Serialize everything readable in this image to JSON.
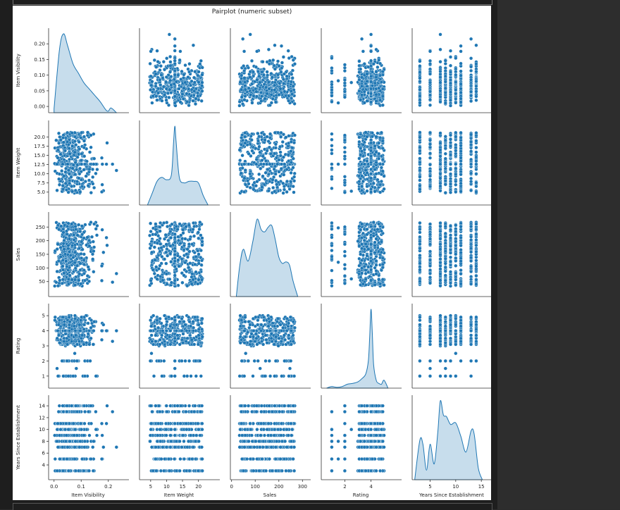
{
  "figure": {
    "title": "Pairplot (numeric subset)"
  },
  "colors": {
    "marker": "#1f77b4",
    "marker_edge": "#ffffff",
    "kde_fill": "#1f77b4",
    "background": "#ffffff"
  },
  "chart_data": {
    "type": "scatter",
    "subtype": "pairplot",
    "title": "Pairplot (numeric subset)",
    "diagonal": "kde",
    "variables": [
      {
        "name": "Item Visibility",
        "range": [
          0.0,
          0.23
        ],
        "lim": [
          -0.02,
          0.25
        ],
        "ticks": [
          0.0,
          0.1,
          0.2
        ],
        "tick_labels": [
          "0.0",
          "0.1",
          "0.2"
        ],
        "yticks": [
          0.0,
          0.05,
          0.1,
          0.15,
          0.2
        ],
        "ytick_labels": [
          "0.00",
          "0.05",
          "0.10",
          "0.15",
          "0.20"
        ],
        "kde_peak": 0.035
      },
      {
        "name": "Item Weight",
        "range": [
          4.6,
          21.3
        ],
        "lim": [
          1.5,
          24.5
        ],
        "ticks": [
          5,
          10,
          15,
          20
        ],
        "tick_labels": [
          "5",
          "10",
          "15",
          "20"
        ],
        "yticks": [
          5.0,
          7.5,
          10.0,
          12.5,
          15.0,
          17.5,
          20.0
        ],
        "ytick_labels": [
          "5.0",
          "7.5",
          "10.0",
          "12.5",
          "15.0",
          "17.5",
          "20.0"
        ],
        "kde_peak": 12.6
      },
      {
        "name": "Sales",
        "range": [
          33,
          268
        ],
        "lim": [
          -5,
          305
        ],
        "ticks": [
          0,
          100,
          200,
          300
        ],
        "tick_labels": [
          "0",
          "100",
          "200",
          "300"
        ],
        "yticks": [
          50,
          100,
          150,
          200,
          250
        ],
        "ytick_labels": [
          "50",
          "100",
          "150",
          "200",
          "250"
        ],
        "kde_peak": 108
      },
      {
        "name": "Rating",
        "range": [
          1,
          5
        ],
        "lim": [
          0.2,
          5.8
        ],
        "ticks": [
          2,
          4
        ],
        "tick_labels": [
          "2",
          "4"
        ],
        "yticks": [
          1,
          2,
          3,
          4,
          5
        ],
        "ytick_labels": [
          "1",
          "2",
          "3",
          "4",
          "5"
        ],
        "kde_peak": 4.0
      },
      {
        "name": "Years Since Establishment",
        "range": [
          3,
          14
        ],
        "lim": [
          1.5,
          15.8
        ],
        "ticks": [
          5,
          10,
          15
        ],
        "tick_labels": [
          "5",
          "10",
          "15"
        ],
        "yticks": [
          4,
          6,
          8,
          10,
          12,
          14
        ],
        "ytick_labels": [
          "4",
          "6",
          "8",
          "10",
          "12",
          "14"
        ],
        "kde_peak": 7
      }
    ],
    "discrete_values": {
      "Rating": [
        1,
        1.5,
        2,
        2.5,
        3,
        3.5,
        4,
        4.5,
        5
      ],
      "Years Since Establishment": [
        3,
        5,
        7,
        8,
        9,
        10,
        11,
        13,
        14
      ]
    },
    "kde": {
      "Item Visibility": {
        "x": [
          0.0,
          0.02,
          0.035,
          0.05,
          0.07,
          0.09,
          0.11,
          0.13,
          0.15,
          0.17,
          0.19,
          0.2,
          0.21,
          0.23
        ],
        "density": [
          0.05,
          0.8,
          1.0,
          0.85,
          0.62,
          0.5,
          0.38,
          0.3,
          0.22,
          0.14,
          0.04,
          0.02,
          0.06,
          0.0
        ]
      },
      "Item Weight": {
        "x": [
          4,
          5.5,
          7,
          8.5,
          10,
          11.5,
          12.2,
          12.6,
          13.0,
          14,
          15.5,
          17,
          18.5,
          20,
          21.5,
          23
        ],
        "density": [
          0.0,
          0.15,
          0.3,
          0.35,
          0.32,
          0.38,
          0.8,
          1.0,
          0.8,
          0.35,
          0.28,
          0.3,
          0.3,
          0.28,
          0.12,
          0.0
        ]
      },
      "Sales": {
        "x": [
          20,
          35,
          50,
          70,
          90,
          108,
          125,
          140,
          155,
          170,
          185,
          200,
          215,
          230,
          245,
          260,
          280
        ],
        "density": [
          0.0,
          0.4,
          0.6,
          0.45,
          0.7,
          0.98,
          0.85,
          0.82,
          0.88,
          0.9,
          0.72,
          0.5,
          0.42,
          0.44,
          0.4,
          0.2,
          0.0
        ]
      },
      "Rating": {
        "x": [
          0.6,
          1.0,
          1.4,
          1.8,
          2.2,
          2.6,
          3.0,
          3.3,
          3.6,
          3.8,
          3.9,
          4.0,
          4.1,
          4.2,
          4.4,
          4.6,
          4.8,
          5.0,
          5.3
        ],
        "density": [
          0.0,
          0.02,
          0.01,
          0.02,
          0.05,
          0.06,
          0.08,
          0.12,
          0.18,
          0.35,
          0.65,
          1.0,
          0.7,
          0.3,
          0.1,
          0.06,
          0.05,
          0.1,
          0.0
        ]
      },
      "Years Since Establishment": {
        "x": [
          2,
          3,
          3.6,
          4.3,
          5,
          5.8,
          6.5,
          7,
          7.6,
          8.2,
          9,
          10,
          11,
          12,
          13,
          13.6,
          14.4,
          15.2
        ],
        "density": [
          0.0,
          0.5,
          0.45,
          0.12,
          0.45,
          0.2,
          0.6,
          1.0,
          0.82,
          0.8,
          0.7,
          0.72,
          0.55,
          0.35,
          0.62,
          0.58,
          0.15,
          0.0
        ]
      }
    },
    "n_points": 1500,
    "grid": false,
    "legend": "none"
  }
}
